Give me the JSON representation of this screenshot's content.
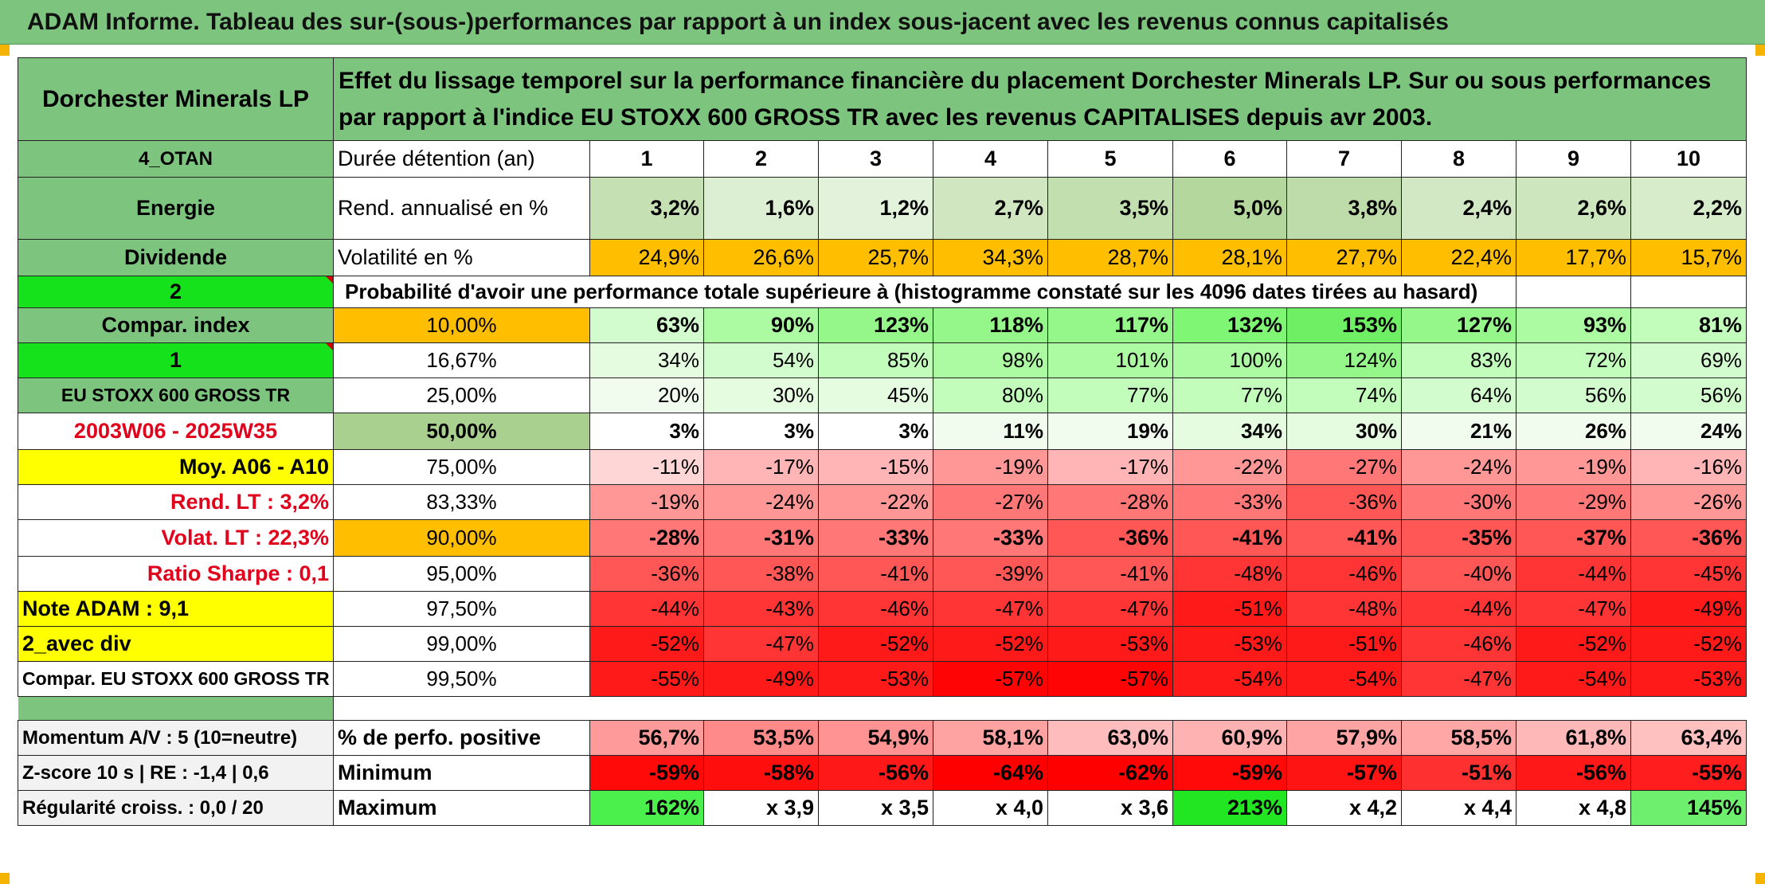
{
  "title": "ADAM Informe. Tableau des sur-(sous-)performances par rapport à un index sous-jacent avec les revenus connus capitalisés",
  "header": {
    "company": "Dorchester Minerals LP",
    "description": "Effet du lissage temporel sur la performance financière du placement Dorchester Minerals LP. Sur ou sous performances par rapport à l'indice EU STOXX 600 GROSS TR avec les revenus CAPITALISES depuis avr 2003."
  },
  "sidebar": {
    "code": "4_OTAN",
    "sector": "Energie",
    "type": "Dividende",
    "mode": "2",
    "compar_index": "Compar. index",
    "one": "1",
    "index_name": "EU STOXX 600 GROSS TR",
    "period": "2003W06 - 2025W35",
    "moy": "Moy. A06 - A10",
    "rend_lt": "Rend. LT :   3,2%",
    "volat_lt": "Volat. LT :   22,3%",
    "sharpe": "Ratio Sharpe :   0,1",
    "note": "Note ADAM : 9,1",
    "avec_div": "2_avec div",
    "compar_full": "Compar. EU STOXX 600 GROSS TR",
    "momentum": "Momentum A/V : 5 (10=neutre)",
    "zscore": "Z-score 10 s | RE : -1,4 | 0,6",
    "regularite": "Régularité croiss. : 0,0 / 20"
  },
  "labels": {
    "duree": "Durée détention (an)",
    "rend": "Rend. annualisé en %",
    "volat": "Volatilité en %",
    "proba": "Probabilité d'avoir une performance totale supérieure à (histogramme constaté sur les 4096 dates tirées au hasard)",
    "pct_positive": "% de perfo. positive",
    "minimum": "Minimum",
    "maximum": "Maximum"
  },
  "years": [
    "1",
    "2",
    "3",
    "4",
    "5",
    "6",
    "7",
    "8",
    "9",
    "10"
  ],
  "rend": [
    "3,2%",
    "1,6%",
    "1,2%",
    "2,7%",
    "3,5%",
    "5,0%",
    "3,8%",
    "2,4%",
    "2,6%",
    "2,2%"
  ],
  "volat": [
    "24,9%",
    "26,6%",
    "25,7%",
    "34,3%",
    "28,7%",
    "28,1%",
    "27,7%",
    "22,4%",
    "17,7%",
    "15,7%"
  ],
  "prob_rows": [
    {
      "threshold": "10,00%",
      "values": [
        "63%",
        "90%",
        "123%",
        "118%",
        "117%",
        "132%",
        "153%",
        "127%",
        "93%",
        "81%"
      ]
    },
    {
      "threshold": "16,67%",
      "values": [
        "34%",
        "54%",
        "85%",
        "98%",
        "101%",
        "100%",
        "124%",
        "83%",
        "72%",
        "69%"
      ]
    },
    {
      "threshold": "25,00%",
      "values": [
        "20%",
        "30%",
        "45%",
        "80%",
        "77%",
        "77%",
        "74%",
        "64%",
        "56%",
        "56%"
      ]
    },
    {
      "threshold": "50,00%",
      "values": [
        "3%",
        "3%",
        "3%",
        "11%",
        "19%",
        "34%",
        "30%",
        "21%",
        "26%",
        "24%"
      ]
    },
    {
      "threshold": "75,00%",
      "values": [
        "-11%",
        "-17%",
        "-15%",
        "-19%",
        "-17%",
        "-22%",
        "-27%",
        "-24%",
        "-19%",
        "-16%"
      ]
    },
    {
      "threshold": "83,33%",
      "values": [
        "-19%",
        "-24%",
        "-22%",
        "-27%",
        "-28%",
        "-33%",
        "-36%",
        "-30%",
        "-29%",
        "-26%"
      ]
    },
    {
      "threshold": "90,00%",
      "values": [
        "-28%",
        "-31%",
        "-33%",
        "-33%",
        "-36%",
        "-41%",
        "-41%",
        "-35%",
        "-37%",
        "-36%"
      ]
    },
    {
      "threshold": "95,00%",
      "values": [
        "-36%",
        "-38%",
        "-41%",
        "-39%",
        "-41%",
        "-48%",
        "-46%",
        "-40%",
        "-44%",
        "-45%"
      ]
    },
    {
      "threshold": "97,50%",
      "values": [
        "-44%",
        "-43%",
        "-46%",
        "-47%",
        "-47%",
        "-51%",
        "-48%",
        "-44%",
        "-47%",
        "-49%"
      ]
    },
    {
      "threshold": "99,00%",
      "values": [
        "-52%",
        "-47%",
        "-52%",
        "-52%",
        "-53%",
        "-53%",
        "-51%",
        "-46%",
        "-52%",
        "-52%"
      ]
    },
    {
      "threshold": "99,50%",
      "values": [
        "-55%",
        "-49%",
        "-53%",
        "-57%",
        "-57%",
        "-54%",
        "-54%",
        "-47%",
        "-54%",
        "-53%"
      ]
    }
  ],
  "pct_positive": [
    "56,7%",
    "53,5%",
    "54,9%",
    "58,1%",
    "63,0%",
    "60,9%",
    "57,9%",
    "58,5%",
    "61,8%",
    "63,4%"
  ],
  "minimum": [
    "-59%",
    "-58%",
    "-56%",
    "-64%",
    "-62%",
    "-59%",
    "-57%",
    "-51%",
    "-56%",
    "-55%"
  ],
  "maximum": [
    "162%",
    "x 3,9",
    "x 3,5",
    "x 4,0",
    "x 3,6",
    "213%",
    "x 4,2",
    "x 4,4",
    "x 4,8",
    "145%"
  ],
  "colors": {
    "header_green": "#7dc57f",
    "bright_green": "#16e21c",
    "yellow": "#ffff00",
    "orange": "#ffbf00",
    "red_text": "#e0001b",
    "rend_green": "#c6e2b6",
    "max_green": "#4cf04c"
  }
}
